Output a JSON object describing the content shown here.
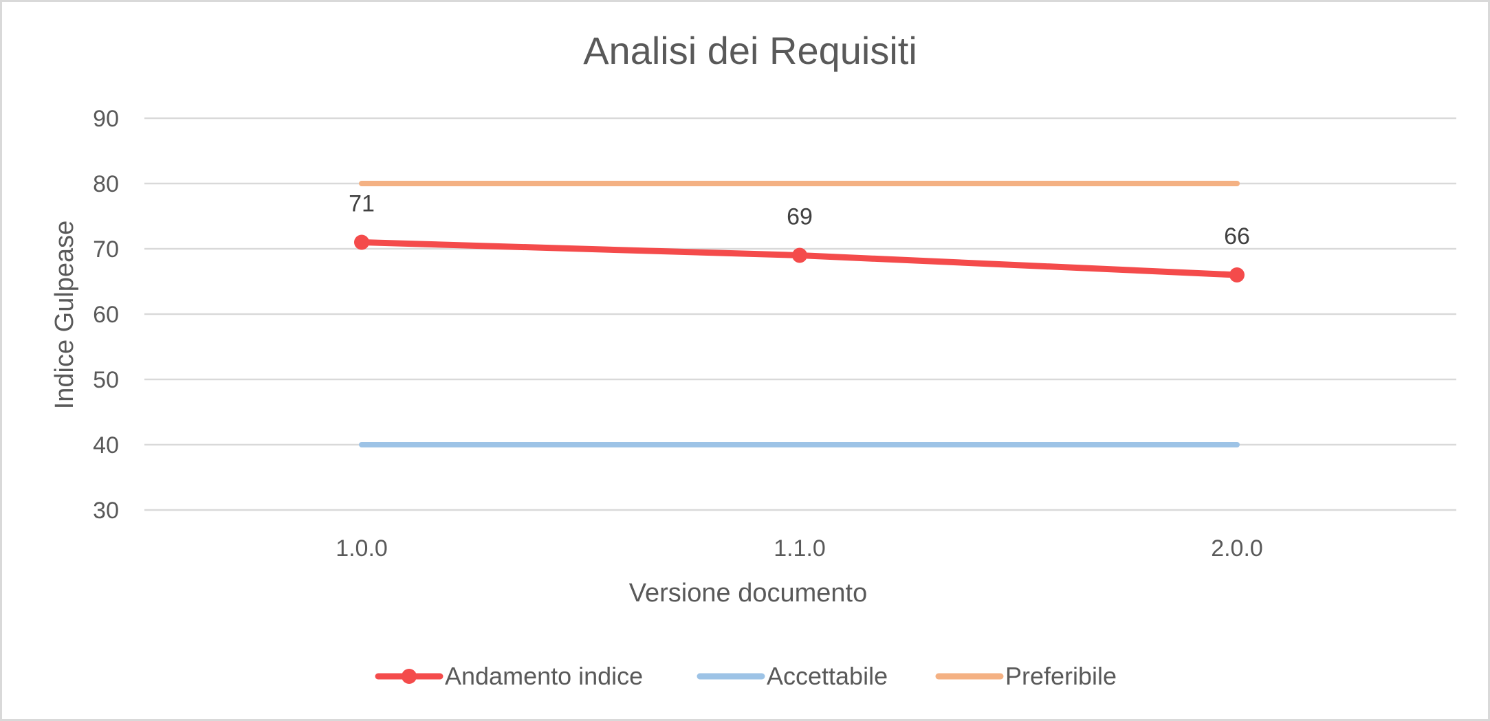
{
  "chart_data": {
    "type": "line",
    "title": "Analisi dei Requisiti",
    "xlabel": "Versione documento",
    "ylabel": "Indice Gulpease",
    "categories": [
      "1.0.0",
      "1.1.0",
      "2.0.0"
    ],
    "ylim": [
      30,
      90
    ],
    "yticks": [
      30,
      40,
      50,
      60,
      70,
      80,
      90
    ],
    "grid": true,
    "legend_position": "bottom",
    "series": [
      {
        "name": "Andamento indice",
        "values": [
          71,
          69,
          66
        ],
        "color": "#f44b4b",
        "markers": true,
        "data_labels": true
      },
      {
        "name": "Accettabile",
        "values": [
          40,
          40,
          40
        ],
        "color": "#9dc3e6",
        "markers": false,
        "data_labels": false
      },
      {
        "name": "Preferibile",
        "values": [
          80,
          80,
          80
        ],
        "color": "#f4b183",
        "markers": false,
        "data_labels": false
      }
    ]
  }
}
